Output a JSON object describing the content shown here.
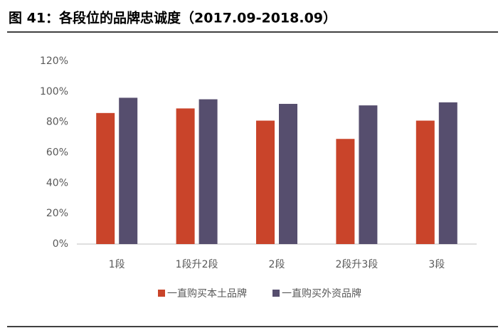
{
  "chart_data": {
    "type": "bar",
    "title": "图 41：各段位的品牌忠诚度（2017.09-2018.09）",
    "categories": [
      "1段",
      "1段升2段",
      "2段",
      "2段升3段",
      "3段"
    ],
    "series": [
      {
        "name": "一直购买本土品牌",
        "color": "#c9442a",
        "values": [
          86,
          89,
          81,
          69,
          81
        ]
      },
      {
        "name": "一直购买外资品牌",
        "color": "#564e6e",
        "values": [
          96,
          95,
          92,
          91,
          93
        ]
      }
    ],
    "ylim": [
      0,
      120
    ],
    "yticks": [
      {
        "value": 0,
        "label": "0%"
      },
      {
        "value": 20,
        "label": "20%"
      },
      {
        "value": 40,
        "label": "40%"
      },
      {
        "value": 60,
        "label": "60%"
      },
      {
        "value": 80,
        "label": "80%"
      },
      {
        "value": 100,
        "label": "100%"
      },
      {
        "value": 120,
        "label": "120%"
      }
    ],
    "grid": false,
    "legend": "bottom"
  }
}
